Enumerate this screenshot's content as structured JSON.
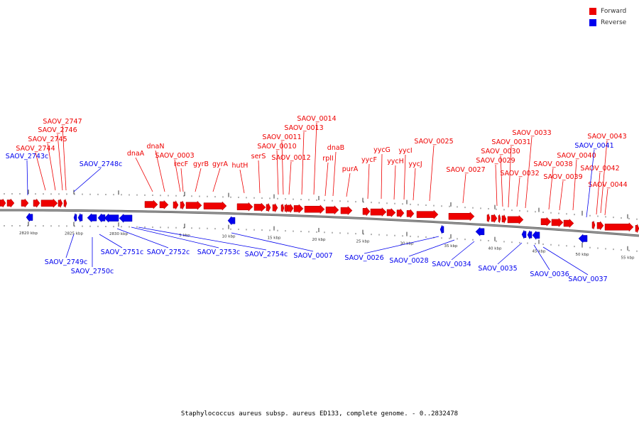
{
  "legend": {
    "forward_label": "Forward",
    "reverse_label": "Reverse",
    "forward_color": "#ee0000",
    "reverse_color": "#0000ee"
  },
  "caption": "Staphylococcus aureus subsp. aureus ED133, complete genome. - 0..2832478",
  "forward_labels": [
    "SAOV_2747",
    "SAOV_2746",
    "SAOV_2745",
    "SAOV_2744",
    "dnaN",
    "dnaA",
    "SAOV_0003",
    "recF",
    "gyrB",
    "gyrA",
    "hutH",
    "serS",
    "SAOV_0014",
    "SAOV_0013",
    "SAOV_0011",
    "SAOV_0010",
    "SAOV_0012",
    "rplI",
    "dnaB",
    "purA",
    "yycG",
    "yycF",
    "yycI",
    "yycH",
    "yycJ",
    "SAOV_0025",
    "SAOV_0027",
    "SAOV_0033",
    "SAOV_0031",
    "SAOV_0030",
    "SAOV_0029",
    "SAOV_0032",
    "SAOV_0038",
    "SAOV_0039",
    "SAOV_0040",
    "SAOV_0043",
    "SAOV_0042",
    "SAOV_0044"
  ],
  "reverse_labels": [
    "SAOV_2743c",
    "SAOV_2748c",
    "SAOV_0041",
    "SAOV_2749c",
    "SAOV_2750c",
    "SAOV_2751c",
    "SAOV_2752c",
    "SAOV_2753c",
    "SAOV_2754c",
    "SAOV_0007",
    "SAOV_0026",
    "SAOV_0028",
    "SAOV_0034",
    "SAOV_0035",
    "SAOV_0036",
    "SAOV_0037"
  ],
  "ticks": [
    "2820 kbp",
    "2825 kbp",
    "2830 kbp",
    "5 kbp",
    "10 kbp",
    "15 kbp",
    "20 kbp",
    "25 kbp",
    "30 kbp",
    "35 kbp",
    "40 kbp",
    "45 kbp",
    "50 kbp",
    "55 kbp"
  ]
}
